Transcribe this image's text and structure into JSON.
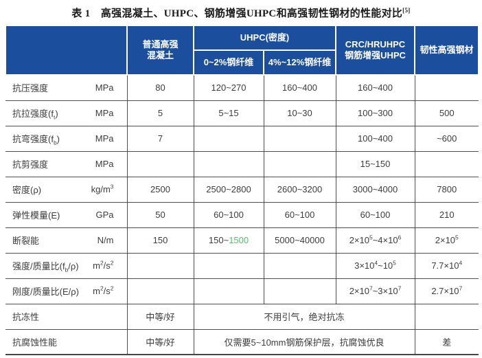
{
  "page": {
    "title": "表 1　高强混凝土、UHPC、钢筋增强UHPC和高强韧性钢材的性能对比^{[5]}"
  },
  "colors": {
    "header_bg": "#1b4f9e",
    "header_text": "#ffffff",
    "value_blue": "#29abe2",
    "value_green": "#4fc366",
    "body_text": "#3c3c3c",
    "grid_line": "#4d4d4d"
  },
  "table": {
    "header": {
      "blank": "",
      "concrete_lines": [
        "普通高强",
        "混凝土"
      ],
      "uhpc_group": "UHPC(密度)",
      "uhpc_subcols": [
        "0~2%钢纤维",
        "4%~12%钢纤维"
      ],
      "crc_lines": [
        "CRC/HRUHPC",
        "钢筋增强UHPC"
      ],
      "steel": "韧性高强钢材"
    },
    "rows": [
      {
        "label": "抗压强度",
        "unit": "MPa",
        "cells": [
          {
            "t": "80"
          },
          {
            "t": "120~270"
          },
          {
            "t": "160~400"
          },
          {
            "t": "160~400"
          },
          {
            "t": ""
          }
        ]
      },
      {
        "label": "抗拉强度(f_{t})",
        "unit": "MPa",
        "cells": [
          {
            "t": "5"
          },
          {
            "t": "5~15"
          },
          {
            "t": "10~30"
          },
          {
            "t": "100~300",
            "c": "blue"
          },
          {
            "t": "500",
            "c": "blue"
          }
        ]
      },
      {
        "label": "抗弯强度(f_{b})",
        "unit": "MPa",
        "cells": [
          {
            "t": "7"
          },
          {
            "t": ""
          },
          {
            "t": ""
          },
          {
            "t": "100~400",
            "c": "blue"
          },
          {
            "t": "~600",
            "c": "blue"
          }
        ]
      },
      {
        "label": "抗剪强度",
        "unit": "MPa",
        "cells": [
          {
            "t": ""
          },
          {
            "t": ""
          },
          {
            "t": ""
          },
          {
            "t": "15~150"
          },
          {
            "t": ""
          }
        ]
      },
      {
        "label": "密度(ρ)",
        "unit": "kg/m^{3}",
        "cells": [
          {
            "t": "2500"
          },
          {
            "t": "2500~2800"
          },
          {
            "t": "2600~3200"
          },
          {
            "t": "3000~4000",
            "c": "green"
          },
          {
            "t": "7800",
            "c": "green"
          }
        ]
      },
      {
        "label": "弹性模量(E)",
        "unit": "GPa",
        "cells": [
          {
            "t": "50"
          },
          {
            "t": "60~100"
          },
          {
            "t": "60~100"
          },
          {
            "t": "60~100",
            "c": "blue"
          },
          {
            "t": "210",
            "c": "blue"
          }
        ]
      },
      {
        "label": "断裂能",
        "unit": "N/m",
        "cells": [
          {
            "t": "150"
          },
          {
            "segments": [
              {
                "t": "150~"
              },
              {
                "t": "1500",
                "c": "green"
              }
            ]
          },
          {
            "t": "5000~40000",
            "c": "green"
          },
          {
            "t": "2×10^{5}~4×10^{6}",
            "c": "green"
          },
          {
            "t": "2×10^{5}",
            "c": "green"
          }
        ]
      },
      {
        "label": "强度/质量比(f_{b}/ρ)",
        "unit": "m^{2}/s^{2}",
        "cells": [
          {
            "t": ""
          },
          {
            "t": ""
          },
          {
            "t": ""
          },
          {
            "t": "3×10^{4}~10^{5}",
            "c": "green"
          },
          {
            "t": "7.7×10^{4}",
            "c": "green"
          }
        ]
      },
      {
        "label": "刚度/质量比(E/ρ)",
        "unit": "m^{2}/s^{2}",
        "cells": [
          {
            "t": ""
          },
          {
            "t": ""
          },
          {
            "t": ""
          },
          {
            "t": "2×10^{7}~3×10^{7}",
            "c": "green"
          },
          {
            "t": "2.7×10^{7}",
            "c": "green"
          }
        ]
      },
      {
        "label": "抗冻性",
        "unit": "",
        "cells": [
          {
            "t": "中等/好"
          },
          {
            "t": "不用引气，绝对抗冻",
            "span": 3
          },
          {
            "t": ""
          }
        ]
      },
      {
        "label": "抗腐蚀性能",
        "unit": "",
        "cells": [
          {
            "t": "中等/好"
          },
          {
            "t": "仅需要5~10mm钢筋保护层，抗腐蚀优良",
            "span": 3,
            "c": "green"
          },
          {
            "t": "差",
            "c": "green"
          }
        ]
      }
    ]
  }
}
